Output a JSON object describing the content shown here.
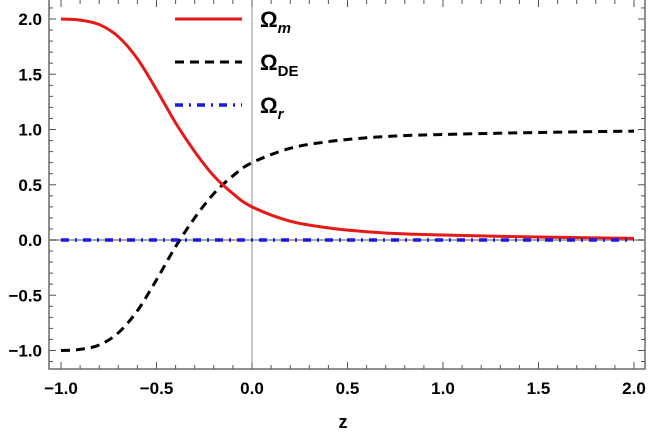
{
  "chart_data": {
    "type": "line",
    "title": "",
    "xlabel": "z",
    "ylabel": "",
    "xlim": [
      -1.0,
      2.0
    ],
    "ylim": [
      -1.15,
      2.18
    ],
    "grid": false,
    "legend_position": "top-center",
    "x_ticks": [
      "-1.0",
      "-0.5",
      "0.0",
      "0.5",
      "1.0",
      "1.5",
      "2.0"
    ],
    "y_ticks": [
      "-1.0",
      "-0.5",
      "0.0",
      "0.5",
      "1.0",
      "1.5",
      "2.0"
    ],
    "x": [
      -1.0,
      -0.9,
      -0.8,
      -0.7,
      -0.6,
      -0.5,
      -0.4,
      -0.3,
      -0.2,
      -0.1,
      0.0,
      0.2,
      0.4,
      0.6,
      0.8,
      1.0,
      1.25,
      1.5,
      1.75,
      2.0
    ],
    "series": [
      {
        "name": "Ω_m",
        "label_main": "Ω",
        "label_sub": "m",
        "sub_italic": true,
        "color": "#e61919",
        "style": "solid",
        "values": [
          2.0,
          1.99,
          1.95,
          1.84,
          1.64,
          1.36,
          1.06,
          0.8,
          0.58,
          0.42,
          0.3,
          0.17,
          0.11,
          0.075,
          0.055,
          0.045,
          0.035,
          0.027,
          0.02,
          0.015
        ]
      },
      {
        "name": "Ω_DE",
        "label_main": "Ω",
        "label_sub": "DE",
        "sub_italic": false,
        "color": "#000000",
        "style": "dashed",
        "values": [
          -1.0,
          -0.99,
          -0.95,
          -0.84,
          -0.64,
          -0.36,
          -0.06,
          0.2,
          0.42,
          0.58,
          0.7,
          0.83,
          0.89,
          0.925,
          0.945,
          0.955,
          0.965,
          0.973,
          0.98,
          0.985
        ]
      },
      {
        "name": "Ω_r",
        "label_main": "Ω",
        "label_sub": "r",
        "sub_italic": true,
        "color": "#1a1ae6",
        "style": "dash-dot",
        "values": [
          0,
          0,
          0,
          0,
          0,
          0,
          0,
          0,
          0,
          0,
          0,
          0,
          0,
          0,
          0,
          0,
          0,
          0,
          0,
          0
        ]
      }
    ]
  },
  "axes": {
    "x_label": "z"
  }
}
